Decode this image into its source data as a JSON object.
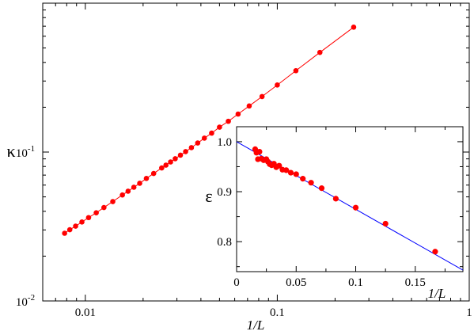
{
  "chart_data": [
    {
      "type": "line",
      "xscale": "log",
      "yscale": "log",
      "xlabel": "1/L",
      "ylabel": "κ",
      "xlim": [
        0.006,
        1.0
      ],
      "ylim": [
        0.01,
        1.0
      ],
      "xticks": [
        {
          "value": 0.01,
          "label": "0.01"
        },
        {
          "value": 0.1,
          "label": "0.1"
        },
        {
          "value": 1,
          "label": "1"
        }
      ],
      "yticks": [
        {
          "value": 0.01,
          "label": "10",
          "exp": "-2"
        },
        {
          "value": 0.1,
          "label": "10",
          "exp": "-1"
        }
      ],
      "grid": false,
      "series": [
        {
          "color": "#ff0000",
          "marker": "circle",
          "x": [
            0.0078,
            0.0083,
            0.0089,
            0.0096,
            0.0104,
            0.0114,
            0.0125,
            0.0139,
            0.0156,
            0.0167,
            0.0179,
            0.0192,
            0.0208,
            0.0227,
            0.025,
            0.0263,
            0.0278,
            0.0294,
            0.0313,
            0.0333,
            0.0357,
            0.0385,
            0.0417,
            0.0455,
            0.05,
            0.0556,
            0.0625,
            0.0714,
            0.0833,
            0.1,
            0.125,
            0.1667,
            0.25
          ],
          "y": [
            0.0285,
            0.0301,
            0.0318,
            0.0339,
            0.0363,
            0.0391,
            0.0424,
            0.0465,
            0.0515,
            0.0546,
            0.058,
            0.0617,
            0.0665,
            0.0718,
            0.0782,
            0.0817,
            0.0858,
            0.0902,
            0.0953,
            0.1007,
            0.107,
            0.115,
            0.124,
            0.134,
            0.147,
            0.161,
            0.18,
            0.204,
            0.236,
            0.282,
            0.352,
            0.467,
            0.69
          ]
        }
      ]
    },
    {
      "type": "scatter",
      "inset": true,
      "xlabel": "1/L",
      "ylabel": "ε",
      "xlim": [
        0,
        0.19
      ],
      "ylim": [
        0.74,
        1.03
      ],
      "xticks": [
        0,
        0.05,
        0.1,
        0.15
      ],
      "xtick_labels": [
        "0",
        "0.05",
        "0.1",
        "0.15"
      ],
      "yticks": [
        0.8,
        0.9,
        1.0
      ],
      "ytick_labels": [
        "0.8",
        "0.9",
        "1.0"
      ],
      "grid": false,
      "series": [
        {
          "color": "#ff0000",
          "marker": "circle",
          "x": [
            0.0156,
            0.0167,
            0.0179,
            0.0192,
            0.0208,
            0.0227,
            0.025,
            0.0263,
            0.0278,
            0.0294,
            0.0313,
            0.0333,
            0.0357,
            0.0385,
            0.0417,
            0.0455,
            0.05,
            0.0556,
            0.0625,
            0.0714,
            0.0833,
            0.1,
            0.125,
            0.1667
          ],
          "y": [
            0.985,
            0.978,
            0.965,
            0.98,
            0.966,
            0.963,
            0.965,
            0.96,
            0.955,
            0.953,
            0.956,
            0.949,
            0.952,
            0.944,
            0.943,
            0.938,
            0.935,
            0.926,
            0.918,
            0.907,
            0.886,
            0.868,
            0.836,
            0.78
          ]
        },
        {
          "color": "#0000ff",
          "marker": "none",
          "x": [
            0,
            0.19
          ],
          "y": [
            1.0,
            0.743
          ]
        }
      ]
    }
  ]
}
